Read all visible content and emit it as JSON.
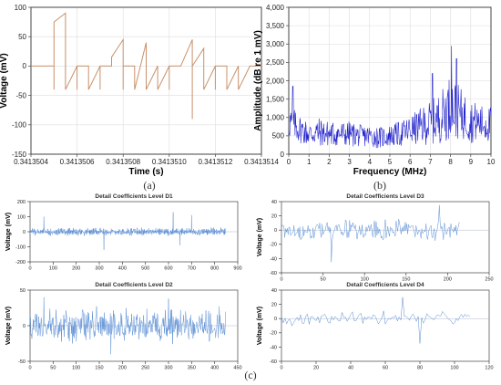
{
  "figure": {
    "panel_labels": [
      "(a)",
      "(b)",
      "(c)"
    ]
  },
  "chart_data": [
    {
      "id": "a",
      "type": "line",
      "xlabel": "Time (s)",
      "ylabel": "Voltage (mV)",
      "xlim": [
        0.3413504,
        0.3413514
      ],
      "ylim": [
        -150,
        100
      ],
      "xticks": [
        "0.3413504",
        "0.3413506",
        "0.3413508",
        "0.3413510",
        "0.3413512",
        "0.3413514"
      ],
      "yticks": [
        "100",
        "50",
        "0",
        "-50",
        "-100",
        "-150"
      ],
      "grid": true,
      "color": "#c8906a",
      "x": [
        0.3413504,
        0.34135045,
        0.3413505,
        0.3413505,
        0.3413505,
        0.3413505,
        0.34135055,
        0.34135055,
        0.34135055,
        0.3413506,
        0.3413506,
        0.3413506,
        0.34135065,
        0.34135065,
        0.3413507,
        0.3413507,
        0.3413507,
        0.34135075,
        0.34135075,
        0.3413508,
        0.3413508,
        0.3413508,
        0.3413508,
        0.34135085,
        0.34135085,
        0.3413509,
        0.3413509,
        0.34135095,
        0.34135095,
        0.341351,
        0.341351,
        0.341351,
        0.34135105,
        0.34135105,
        0.3413511,
        0.3413511,
        0.3413511,
        0.34135115,
        0.34135115,
        0.3413512,
        0.3413512,
        0.3413512,
        0.34135125,
        0.34135125,
        0.3413513,
        0.3413513,
        0.34135135,
        0.34135135,
        0.3413514
      ],
      "y": [
        0,
        0,
        0,
        -40,
        0,
        75,
        90,
        0,
        -40,
        0,
        -40,
        0,
        0,
        -40,
        0,
        -40,
        0,
        0,
        15,
        45,
        -40,
        0,
        0,
        0,
        -40,
        40,
        -40,
        0,
        -40,
        0,
        -40,
        0,
        0,
        0,
        45,
        -90,
        0,
        30,
        -40,
        0,
        -40,
        0,
        0,
        -40,
        0,
        -40,
        0,
        0,
        0
      ]
    },
    {
      "id": "b",
      "type": "line",
      "xlabel": "Frequency (MHz)",
      "ylabel": "Amplitude (dB re 1 mV)",
      "xlim": [
        0,
        10
      ],
      "ylim": [
        0,
        4000
      ],
      "xticks": [
        "0",
        "1",
        "2",
        "3",
        "4",
        "5",
        "6",
        "7",
        "8",
        "9",
        "10"
      ],
      "yticks": [
        "4,000",
        "3,500",
        "3,000",
        "2,500",
        "2,000",
        "1,500",
        "1,000",
        "500",
        "0"
      ],
      "grid": true,
      "color": "#2323cc",
      "envelope_x": [
        0,
        0.5,
        1,
        1.5,
        2,
        2.5,
        3,
        3.5,
        4,
        4.5,
        5,
        5.5,
        6,
        6.5,
        7,
        7.5,
        8,
        8.5,
        9,
        9.5,
        10
      ],
      "envelope_mean": [
        900,
        700,
        550,
        600,
        550,
        550,
        550,
        500,
        500,
        450,
        500,
        550,
        650,
        750,
        850,
        1000,
        1300,
        1100,
        900,
        850,
        800
      ],
      "envelope_range": [
        500,
        400,
        350,
        400,
        350,
        350,
        350,
        300,
        300,
        300,
        300,
        350,
        400,
        500,
        600,
        700,
        900,
        700,
        600,
        500,
        500
      ],
      "peaks": [
        {
          "x": 0.2,
          "y": 1850
        },
        {
          "x": 7.1,
          "y": 2200
        },
        {
          "x": 8.05,
          "y": 2950
        },
        {
          "x": 8.3,
          "y": 2600
        }
      ]
    },
    {
      "id": "D1",
      "type": "line",
      "title": "Detail Coefficients Level D1",
      "ylabel": "Voltage (mV)",
      "xlim": [
        0,
        900
      ],
      "ylim": [
        -200,
        200
      ],
      "xticks": [
        "0",
        "100",
        "200",
        "300",
        "400",
        "500",
        "600",
        "700",
        "800",
        "900"
      ],
      "yticks": [
        "200",
        "100",
        "0",
        "-100",
        "-200"
      ],
      "n_points": 850,
      "typical_amplitude": 30,
      "spikes": [
        {
          "x": 60,
          "y": 100
        },
        {
          "x": 320,
          "y": -120
        },
        {
          "x": 620,
          "y": 130
        },
        {
          "x": 650,
          "y": -90
        },
        {
          "x": 700,
          "y": 110
        }
      ]
    },
    {
      "id": "D3",
      "type": "line",
      "title": "Detail Coefficients Level D3",
      "ylabel": "Voltage (mV)",
      "xlim": [
        0,
        250
      ],
      "ylim": [
        -60,
        40
      ],
      "xticks": [
        "0",
        "50",
        "100",
        "150",
        "200",
        "250"
      ],
      "yticks": [
        "40",
        "20",
        "0",
        "-20",
        "-40",
        "-60"
      ],
      "n_points": 215,
      "typical_amplitude": 18,
      "spikes": [
        {
          "x": 60,
          "y": -45
        },
        {
          "x": 190,
          "y": 35
        }
      ]
    },
    {
      "id": "D2",
      "type": "line",
      "title": "Detail Coefficients Level D2",
      "ylabel": "Voltage (mV)",
      "xlim": [
        0,
        450
      ],
      "ylim": [
        -50,
        50
      ],
      "xticks": [
        "0",
        "50",
        "100",
        "150",
        "200",
        "250",
        "300",
        "350",
        "400",
        "450"
      ],
      "yticks": [
        "50",
        "0",
        "-50"
      ],
      "n_points": 425,
      "typical_amplitude": 28,
      "spikes": [
        {
          "x": 30,
          "y": 40
        },
        {
          "x": 175,
          "y": -40
        },
        {
          "x": 300,
          "y": 38
        }
      ]
    },
    {
      "id": "D4",
      "type": "line",
      "title": "Detail Coefficients Level D4",
      "ylabel": "Voltage (mV)",
      "xlim": [
        0,
        120
      ],
      "ylim": [
        -60,
        40
      ],
      "xticks": [
        "0",
        "20",
        "40",
        "60",
        "80",
        "100",
        "120"
      ],
      "yticks": [
        "40",
        "20",
        "0",
        "-20",
        "-40",
        "-60"
      ],
      "n_points": 110,
      "typical_amplitude": 12,
      "spikes": [
        {
          "x": 70,
          "y": 30
        },
        {
          "x": 80,
          "y": -35
        }
      ]
    }
  ]
}
